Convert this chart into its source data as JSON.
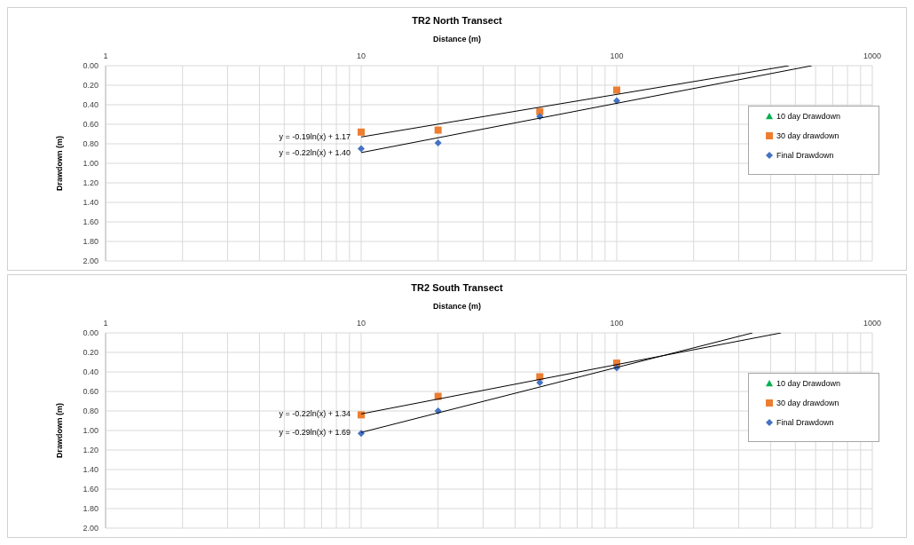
{
  "chart_data": [
    {
      "type": "scatter",
      "title": "TR2 North Transect",
      "xlabel": "Distance (m)",
      "ylabel": "Drawdown (m)",
      "log": "x",
      "grid": true,
      "legend": "right",
      "xlim": [
        1,
        1000
      ],
      "xticks": [
        1,
        {
          "value": 2,
          "label": null
        },
        {
          "value": 3,
          "label": null
        },
        {
          "value": 4,
          "label": null
        },
        {
          "value": 5,
          "label": null
        },
        {
          "value": 6,
          "label": null
        },
        {
          "value": 7,
          "label": null
        },
        {
          "value": 8,
          "label": null
        },
        {
          "value": 9,
          "label": null
        },
        10,
        {
          "value": 20,
          "label": null
        },
        {
          "value": 30,
          "label": null
        },
        {
          "value": 40,
          "label": null
        },
        {
          "value": 50,
          "label": null
        },
        {
          "value": 60,
          "label": null
        },
        {
          "value": 70,
          "label": null
        },
        {
          "value": 80,
          "label": null
        },
        {
          "value": 90,
          "label": null
        },
        100,
        {
          "value": 200,
          "label": null
        },
        {
          "value": 300,
          "label": null
        },
        {
          "value": 400,
          "label": null
        },
        {
          "value": 500,
          "label": null
        },
        {
          "value": 600,
          "label": null
        },
        {
          "value": 700,
          "label": null
        },
        {
          "value": 800,
          "label": null
        },
        {
          "value": 900,
          "label": null
        },
        1000
      ],
      "ylim": [
        2,
        0
      ],
      "yticks": [
        {
          "value": 0,
          "label": "0.00"
        },
        {
          "value": 0.2,
          "label": "0.20"
        },
        {
          "value": 0.4,
          "label": "0.40"
        },
        {
          "value": 0.6,
          "label": "0.60"
        },
        {
          "value": 0.8,
          "label": "0.80"
        },
        {
          "value": 1,
          "label": "1.00"
        },
        {
          "value": 1.2,
          "label": "1.20"
        },
        {
          "value": 1.4,
          "label": "1.40"
        },
        {
          "value": 1.6,
          "label": "1.60"
        },
        {
          "value": 1.8,
          "label": "1.80"
        },
        {
          "value": 2,
          "label": "2.00"
        }
      ],
      "x": [
        10,
        20,
        50,
        100
      ],
      "series": [
        {
          "name": "10 day Drawdown",
          "color": "#00b050",
          "marker": "triangle",
          "values": [
            null,
            null,
            null,
            null
          ]
        },
        {
          "name": "30 day drawdown",
          "color": "#ed7d31",
          "marker": "square",
          "values": [
            0.68,
            0.66,
            0.47,
            0.25
          ]
        },
        {
          "name": "Final Drawdown",
          "color": "#4472c4",
          "marker": "diamond",
          "values": [
            0.85,
            0.79,
            0.52,
            0.36
          ]
        },
        {
          "type": "line",
          "color": "#000000",
          "x": [
            10,
            472
          ],
          "values": [
            0.73,
            0
          ]
        },
        {
          "type": "line",
          "color": "#000000",
          "x": [
            10,
            580
          ],
          "values": [
            0.89,
            0
          ]
        }
      ],
      "annotations": [
        "y = -0.19ln(x) + 1.17",
        "y = -0.22ln(x) + 1.40"
      ]
    },
    {
      "type": "scatter",
      "title": "TR2 South Transect",
      "xlabel": "Distance (m)",
      "ylabel": "Drawdown (m)",
      "log": "x",
      "grid": true,
      "legend": "right",
      "xlim": [
        1,
        1000
      ],
      "xticks": [
        1,
        {
          "value": 2,
          "label": null
        },
        {
          "value": 3,
          "label": null
        },
        {
          "value": 4,
          "label": null
        },
        {
          "value": 5,
          "label": null
        },
        {
          "value": 6,
          "label": null
        },
        {
          "value": 7,
          "label": null
        },
        {
          "value": 8,
          "label": null
        },
        {
          "value": 9,
          "label": null
        },
        10,
        {
          "value": 20,
          "label": null
        },
        {
          "value": 30,
          "label": null
        },
        {
          "value": 40,
          "label": null
        },
        {
          "value": 50,
          "label": null
        },
        {
          "value": 60,
          "label": null
        },
        {
          "value": 70,
          "label": null
        },
        {
          "value": 80,
          "label": null
        },
        {
          "value": 90,
          "label": null
        },
        100,
        {
          "value": 200,
          "label": null
        },
        {
          "value": 300,
          "label": null
        },
        {
          "value": 400,
          "label": null
        },
        {
          "value": 500,
          "label": null
        },
        {
          "value": 600,
          "label": null
        },
        {
          "value": 700,
          "label": null
        },
        {
          "value": 800,
          "label": null
        },
        {
          "value": 900,
          "label": null
        },
        1000
      ],
      "ylim": [
        2,
        0
      ],
      "yticks": [
        {
          "value": 0,
          "label": "0.00"
        },
        {
          "value": 0.2,
          "label": "0.20"
        },
        {
          "value": 0.4,
          "label": "0.40"
        },
        {
          "value": 0.6,
          "label": "0.60"
        },
        {
          "value": 0.8,
          "label": "0.80"
        },
        {
          "value": 1,
          "label": "1.00"
        },
        {
          "value": 1.2,
          "label": "1.20"
        },
        {
          "value": 1.4,
          "label": "1.40"
        },
        {
          "value": 1.6,
          "label": "1.60"
        },
        {
          "value": 1.8,
          "label": "1.80"
        },
        {
          "value": 2,
          "label": "2.00"
        }
      ],
      "x": [
        10,
        20,
        50,
        100
      ],
      "series": [
        {
          "name": "10 day Drawdown",
          "color": "#00b050",
          "marker": "triangle",
          "values": [
            null,
            null,
            null,
            null
          ]
        },
        {
          "name": "30 day drawdown",
          "color": "#ed7d31",
          "marker": "square",
          "values": [
            0.84,
            0.65,
            0.45,
            0.31
          ]
        },
        {
          "name": "Final Drawdown",
          "color": "#4472c4",
          "marker": "diamond",
          "values": [
            1.03,
            0.8,
            0.51,
            0.36
          ]
        },
        {
          "type": "line",
          "color": "#000000",
          "x": [
            10,
            440
          ],
          "values": [
            0.83,
            0
          ]
        },
        {
          "type": "line",
          "color": "#000000",
          "x": [
            10,
            340
          ],
          "values": [
            1.02,
            0
          ]
        }
      ],
      "annotations": [
        "y = -0.22ln(x) + 1.34",
        "y = -0.29ln(x) + 1.69"
      ]
    }
  ]
}
